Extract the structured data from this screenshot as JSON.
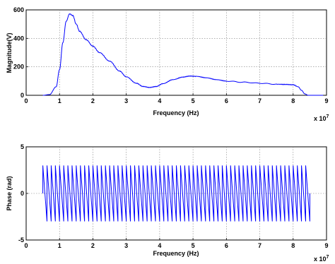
{
  "chart_data": [
    {
      "type": "line",
      "xlabel": "Frequency (Hz)",
      "ylabel": "Magnitude(V)",
      "x_multiplier_label": "x 10",
      "x_multiplier_exp": "7",
      "xlim": [
        0,
        9
      ],
      "ylim": [
        0,
        600
      ],
      "xticks": [
        "0",
        "1",
        "2",
        "3",
        "4",
        "5",
        "6",
        "7",
        "8",
        "9"
      ],
      "yticks": [
        "0",
        "200",
        "400",
        "600"
      ],
      "ytick_values": [
        0,
        200,
        400,
        600
      ],
      "grid": true,
      "series": [
        {
          "color": "#0000ff",
          "x": [
            0.5,
            0.7,
            0.9,
            1.0,
            1.1,
            1.2,
            1.3,
            1.4,
            1.5,
            1.6,
            1.8,
            2.0,
            2.2,
            2.5,
            2.8,
            3.0,
            3.3,
            3.5,
            3.7,
            3.9,
            4.1,
            4.4,
            4.7,
            4.9,
            5.1,
            5.4,
            5.7,
            6.0,
            6.5,
            7.0,
            7.5,
            7.8,
            8.0,
            8.15,
            8.25,
            8.35,
            8.45
          ],
          "y": [
            0,
            5,
            60,
            180,
            370,
            520,
            572,
            560,
            500,
            450,
            390,
            345,
            300,
            240,
            170,
            130,
            85,
            62,
            55,
            62,
            82,
            110,
            128,
            135,
            133,
            123,
            110,
            100,
            92,
            85,
            78,
            76,
            74,
            60,
            35,
            10,
            0
          ]
        }
      ]
    },
    {
      "type": "line",
      "xlabel": "Frequency (Hz)",
      "ylabel": "Phase (rad)",
      "x_multiplier_label": "x 10",
      "x_multiplier_exp": "7",
      "xlim": [
        0,
        9
      ],
      "ylim": [
        -5,
        5
      ],
      "xticks": [
        "0",
        "1",
        "2",
        "3",
        "4",
        "5",
        "6",
        "7",
        "8",
        "9"
      ],
      "yticks": [
        "-5",
        "0",
        "5"
      ],
      "ytick_values": [
        -5,
        0,
        5
      ],
      "grid": true,
      "series": [
        {
          "color": "#0000ff",
          "x_start": 0.5,
          "x_end": 8.5,
          "cycles": 64,
          "amplitude": 3.0
        }
      ]
    }
  ]
}
